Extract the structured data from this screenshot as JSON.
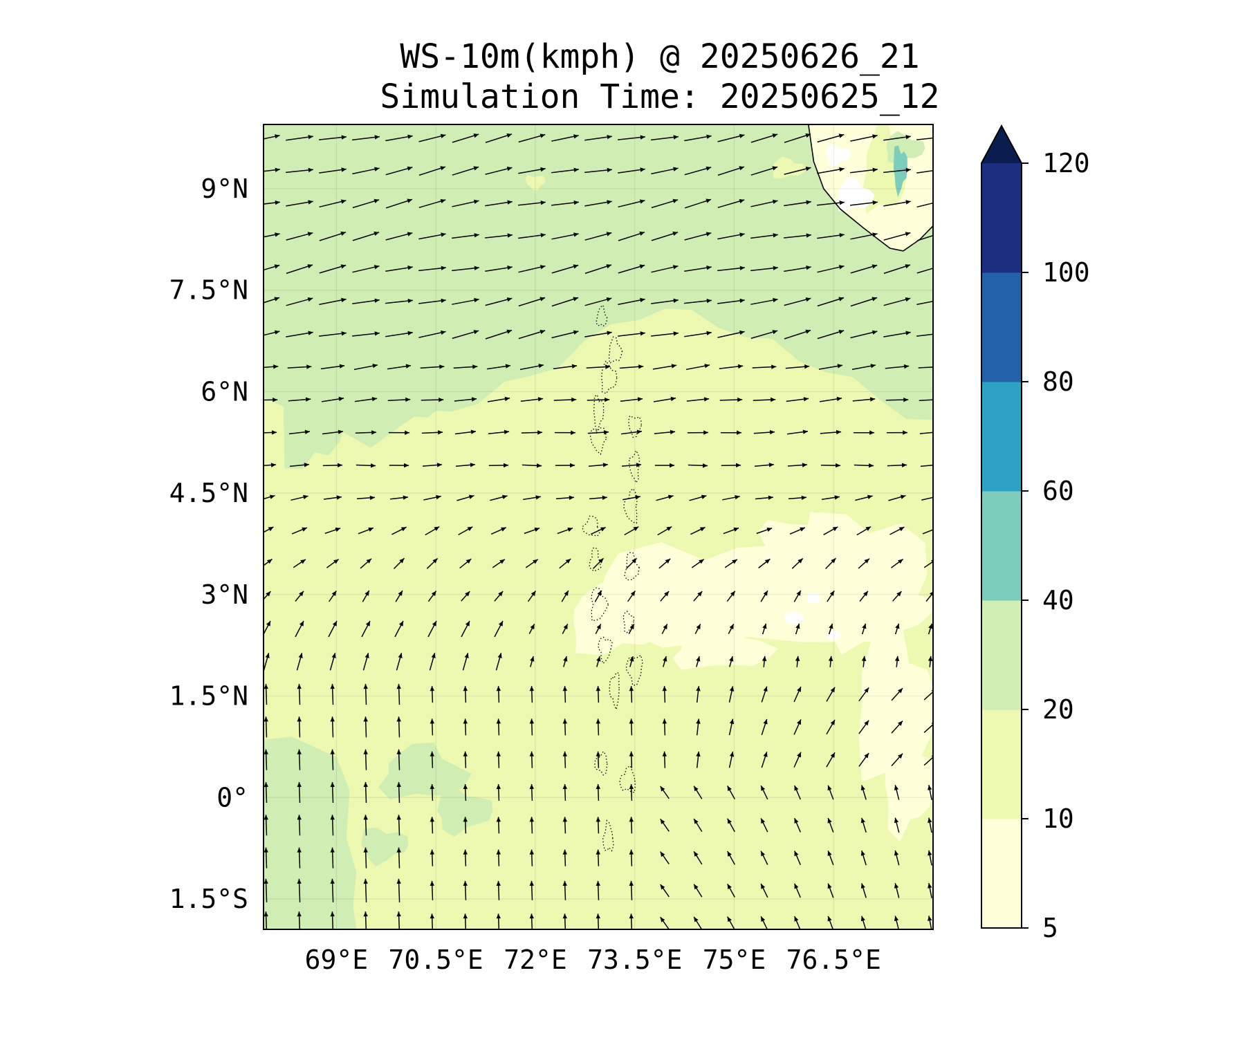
{
  "title": "WS-10m(kmph) @ 20250626_21",
  "subtitle": "Simulation Time: 20250625_12",
  "chart_data": {
    "type": "heatmap",
    "variable": "10 m wind speed with wind-direction arrows",
    "title": "WS-10m(kmph) @ 20250626_21",
    "subtitle": "Simulation Time: 20250625_12",
    "xlim": [
      67.9,
      78.0
    ],
    "ylim": [
      -1.95,
      9.95
    ],
    "x_ticks": [
      {
        "value": 69,
        "label": "69°E"
      },
      {
        "value": 70.5,
        "label": "70.5°E"
      },
      {
        "value": 72,
        "label": "72°E"
      },
      {
        "value": 73.5,
        "label": "73.5°E"
      },
      {
        "value": 75,
        "label": "75°E"
      },
      {
        "value": 76.5,
        "label": "76.5°E"
      }
    ],
    "y_ticks": [
      {
        "value": 9,
        "label": "9°N"
      },
      {
        "value": 7.5,
        "label": "7.5°N"
      },
      {
        "value": 6,
        "label": "6°N"
      },
      {
        "value": 4.5,
        "label": "4.5°N"
      },
      {
        "value": 3,
        "label": "3°N"
      },
      {
        "value": 1.5,
        "label": "1.5°N"
      },
      {
        "value": 0,
        "label": "0°"
      },
      {
        "value": -1.5,
        "label": "1.5°S"
      }
    ],
    "grid": true,
    "colorbar": {
      "levels": [
        5,
        10,
        20,
        40,
        60,
        80,
        100,
        120
      ],
      "labels": [
        "5",
        "10",
        "20",
        "40",
        "60",
        "80",
        "100",
        "120"
      ],
      "colors": [
        "#ffffd9",
        "#edf8b1",
        "#d0edb3",
        "#7ccdbb",
        "#2fa1c5",
        "#2262ab",
        "#1c2c7f"
      ],
      "extend_color": "#0b1d4f",
      "extend": "max"
    },
    "regions": [
      {
        "name": "north-band-20-40",
        "level": "20-40",
        "color": "#d0edb3",
        "lat_min": 6.3,
        "lat_max": 9.95
      },
      {
        "name": "south-west-band-20-40",
        "level": "20-40",
        "color": "#d0edb3",
        "lon_min": 67.9,
        "lon_max": 69.2,
        "lat_min": -1.95,
        "lat_max": 0.9
      },
      {
        "name": "central-10-20",
        "level": "10-20",
        "color": "#edf8b1"
      },
      {
        "name": "east-center-5-10",
        "level": "5-10",
        "color": "#ffffd9",
        "lon_center": 75.5,
        "lat_center": 2.8
      },
      {
        "name": "coast-high-40-60",
        "level": "40-60",
        "color": "#7ccdbb",
        "lon_center": 77.5,
        "lat_center": 9.3
      }
    ],
    "wind_field": [
      {
        "lat_range": [
          6.5,
          9.95
        ],
        "direction": "west-to-east",
        "speed_range_kmph": [
          20,
          40
        ]
      },
      {
        "lat_range": [
          3.0,
          6.3
        ],
        "direction": "west-to-east, weakening",
        "speed_range_kmph": [
          10,
          20
        ]
      },
      {
        "lat_range": [
          -1.95,
          2.0
        ],
        "direction": "south-to-north",
        "speed_range_kmph": [
          10,
          30
        ]
      }
    ],
    "features": [
      "Maldives atolls (dotted outline)",
      "southern tip of India coastline (top-right)"
    ]
  }
}
